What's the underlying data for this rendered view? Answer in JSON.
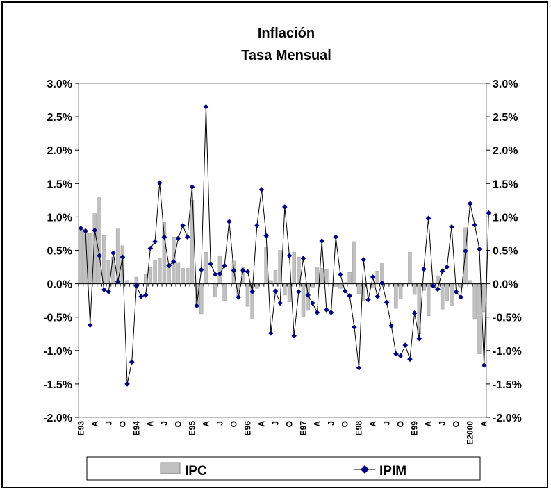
{
  "chart_data": {
    "type": "bar",
    "title": "Inflación",
    "subtitle": "Tasa Mensual",
    "ylim": [
      -2.0,
      3.0
    ],
    "y_ticks": [
      "3.0%",
      "2.5%",
      "2.0%",
      "1.5%",
      "1.0%",
      "0.5%",
      "0.0%",
      "-0.5%",
      "-1.0%",
      "-1.5%",
      "-2.0%"
    ],
    "y_tick_values": [
      3.0,
      2.5,
      2.0,
      1.5,
      1.0,
      0.5,
      0.0,
      -0.5,
      -1.0,
      -1.5,
      -2.0
    ],
    "x_labels": [
      {
        "index": 0,
        "label": "E93"
      },
      {
        "index": 3,
        "label": "A"
      },
      {
        "index": 6,
        "label": "J"
      },
      {
        "index": 9,
        "label": "O"
      },
      {
        "index": 12,
        "label": "E94"
      },
      {
        "index": 15,
        "label": "A"
      },
      {
        "index": 18,
        "label": "J"
      },
      {
        "index": 21,
        "label": "O"
      },
      {
        "index": 24,
        "label": "E95"
      },
      {
        "index": 27,
        "label": "A"
      },
      {
        "index": 30,
        "label": "J"
      },
      {
        "index": 33,
        "label": "O"
      },
      {
        "index": 36,
        "label": "E96"
      },
      {
        "index": 39,
        "label": "A"
      },
      {
        "index": 42,
        "label": "J"
      },
      {
        "index": 45,
        "label": "O"
      },
      {
        "index": 48,
        "label": "E97"
      },
      {
        "index": 51,
        "label": "A"
      },
      {
        "index": 54,
        "label": "J"
      },
      {
        "index": 57,
        "label": "O"
      },
      {
        "index": 60,
        "label": "E98"
      },
      {
        "index": 63,
        "label": "A"
      },
      {
        "index": 66,
        "label": "J"
      },
      {
        "index": 69,
        "label": "O"
      },
      {
        "index": 72,
        "label": "E99"
      },
      {
        "index": 75,
        "label": "A"
      },
      {
        "index": 78,
        "label": "J"
      },
      {
        "index": 81,
        "label": "O"
      },
      {
        "index": 84,
        "label": "E2000"
      },
      {
        "index": 87,
        "label": "A"
      }
    ],
    "series": [
      {
        "name": "IPC",
        "type": "bar",
        "values": [
          0.8,
          0.78,
          0.75,
          1.05,
          1.29,
          0.72,
          0.35,
          0.4,
          0.82,
          0.57,
          0.05,
          0.02,
          0.1,
          0.0,
          0.15,
          0.25,
          0.35,
          0.38,
          0.92,
          0.3,
          0.7,
          0.32,
          0.23,
          0.23,
          1.25,
          -0.35,
          -0.45,
          0.47,
          0.0,
          -0.2,
          0.42,
          -0.25,
          0.0,
          0.34,
          -0.2,
          0.24,
          -0.34,
          -0.53,
          -0.07,
          0.0,
          0.55,
          0.05,
          0.2,
          0.5,
          -0.17,
          -0.27,
          0.47,
          0.4,
          -0.5,
          -0.4,
          -0.05,
          0.24,
          0.23,
          0.22,
          0.0,
          -0.04,
          -0.07,
          0.02,
          0.17,
          0.63,
          -0.15,
          -0.25,
          0.01,
          -0.05,
          0.19,
          0.31,
          0.0,
          0.0,
          -0.37,
          -0.23,
          0.0,
          0.47,
          -0.16,
          -0.75,
          -0.1,
          -0.48,
          -0.02,
          0.12,
          -0.38,
          -0.25,
          -0.33,
          0.0,
          -0.05,
          0.84,
          0.05,
          -0.52,
          -1.05,
          -0.42
        ],
        "color": "#c0c0c0"
      },
      {
        "name": "IPIM",
        "type": "line",
        "values": [
          0.83,
          0.79,
          -0.62,
          0.8,
          0.42,
          -0.09,
          -0.12,
          0.46,
          0.03,
          0.4,
          -1.5,
          -1.17,
          -0.03,
          -0.19,
          -0.17,
          0.53,
          0.63,
          1.51,
          0.7,
          0.27,
          0.33,
          0.68,
          0.87,
          0.7,
          1.45,
          -0.33,
          0.21,
          2.65,
          0.3,
          0.14,
          0.15,
          0.27,
          0.93,
          0.2,
          -0.2,
          0.2,
          0.18,
          -0.12,
          0.87,
          1.41,
          0.72,
          -0.74,
          -0.11,
          -0.29,
          1.15,
          0.42,
          -0.78,
          -0.12,
          0.38,
          -0.17,
          -0.29,
          -0.43,
          0.64,
          -0.39,
          -0.43,
          0.7,
          0.14,
          -0.11,
          -0.18,
          -0.65,
          -1.26,
          0.36,
          -0.24,
          0.1,
          -0.19,
          0.01,
          -0.28,
          -0.63,
          -1.05,
          -1.08,
          -0.92,
          -1.13,
          -0.44,
          -0.82,
          0.22,
          0.98,
          -0.03,
          -0.08,
          0.19,
          0.25,
          0.85,
          -0.12,
          -0.2,
          0.49,
          1.2,
          0.88,
          0.52,
          -1.22,
          1.06
        ],
        "color": "#000080"
      }
    ]
  }
}
